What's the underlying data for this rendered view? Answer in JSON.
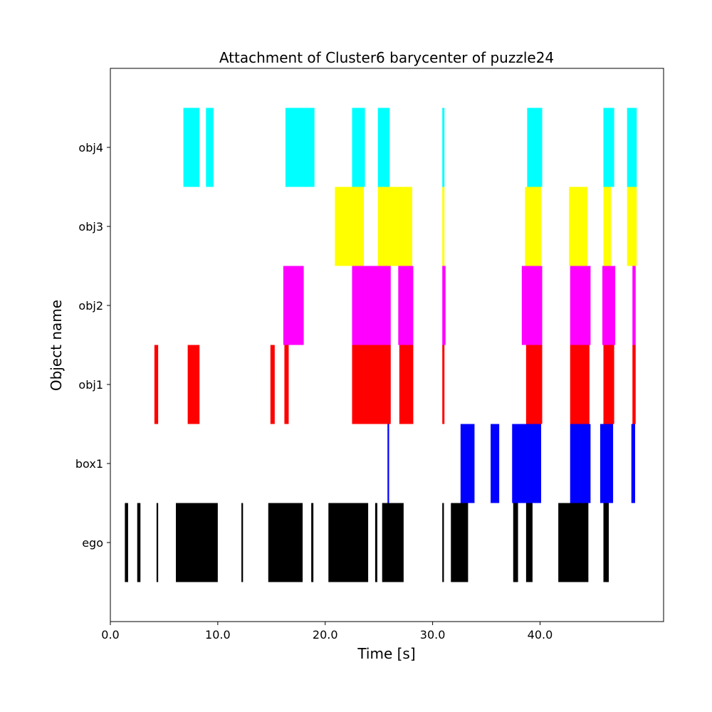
{
  "chart_data": {
    "type": "timeline",
    "title": "Attachment of Cluster6 barycenter of puzzle24",
    "xlabel": "Time [s]",
    "ylabel": "Object name",
    "xlim": [
      0,
      51.5
    ],
    "x_ticks": [
      0,
      10,
      20,
      30,
      40
    ],
    "x_tick_labels": [
      "0.0",
      "10.0",
      "20.0",
      "30.0",
      "40.0"
    ],
    "grid": false,
    "legend": "none",
    "categories": [
      "ego",
      "box1",
      "obj1",
      "obj2",
      "obj3",
      "obj4"
    ],
    "series": [
      {
        "category": "ego",
        "color": "#000000",
        "intervals": [
          [
            1.35,
            1.65
          ],
          [
            2.5,
            2.8
          ],
          [
            4.3,
            4.45
          ],
          [
            6.1,
            10.0
          ],
          [
            12.2,
            12.35
          ],
          [
            14.7,
            17.9
          ],
          [
            18.7,
            18.9
          ],
          [
            20.3,
            24.0
          ],
          [
            24.65,
            24.85
          ],
          [
            25.3,
            27.3
          ],
          [
            30.9,
            31.05
          ],
          [
            31.7,
            33.3
          ],
          [
            37.5,
            37.95
          ],
          [
            38.7,
            39.3
          ],
          [
            41.7,
            44.5
          ],
          [
            45.9,
            46.4
          ]
        ]
      },
      {
        "category": "box1",
        "color": "#0000ff",
        "intervals": [
          [
            25.8,
            25.95
          ],
          [
            32.6,
            33.9
          ],
          [
            35.4,
            36.2
          ],
          [
            37.4,
            40.1
          ],
          [
            42.8,
            44.7
          ],
          [
            45.6,
            46.8
          ],
          [
            48.5,
            48.85
          ]
        ]
      },
      {
        "category": "obj1",
        "color": "#ff0000",
        "intervals": [
          [
            4.1,
            4.45
          ],
          [
            7.2,
            8.3
          ],
          [
            14.9,
            15.3
          ],
          [
            16.2,
            16.6
          ],
          [
            22.5,
            26.1
          ],
          [
            26.9,
            28.2
          ],
          [
            30.9,
            31.1
          ],
          [
            38.7,
            40.2
          ],
          [
            42.8,
            44.6
          ],
          [
            45.9,
            46.9
          ],
          [
            48.6,
            48.9
          ]
        ]
      },
      {
        "category": "obj2",
        "color": "#ff00ff",
        "intervals": [
          [
            16.1,
            18.0
          ],
          [
            22.5,
            26.1
          ],
          [
            26.8,
            28.2
          ],
          [
            30.9,
            31.2
          ],
          [
            38.3,
            40.2
          ],
          [
            42.8,
            44.7
          ],
          [
            45.8,
            47.0
          ],
          [
            48.6,
            48.9
          ]
        ]
      },
      {
        "category": "obj3",
        "color": "#ffff00",
        "intervals": [
          [
            20.9,
            23.6
          ],
          [
            24.9,
            28.1
          ],
          [
            30.9,
            31.1
          ],
          [
            38.6,
            40.1
          ],
          [
            42.7,
            44.4
          ],
          [
            45.9,
            46.6
          ],
          [
            48.1,
            49.0
          ]
        ]
      },
      {
        "category": "obj4",
        "color": "#00ffff",
        "intervals": [
          [
            6.8,
            8.3
          ],
          [
            8.9,
            9.6
          ],
          [
            16.3,
            19.0
          ],
          [
            22.5,
            23.7
          ],
          [
            24.9,
            26.0
          ],
          [
            30.9,
            31.1
          ],
          [
            38.8,
            40.2
          ],
          [
            45.9,
            46.9
          ],
          [
            48.1,
            49.0
          ]
        ]
      }
    ]
  }
}
